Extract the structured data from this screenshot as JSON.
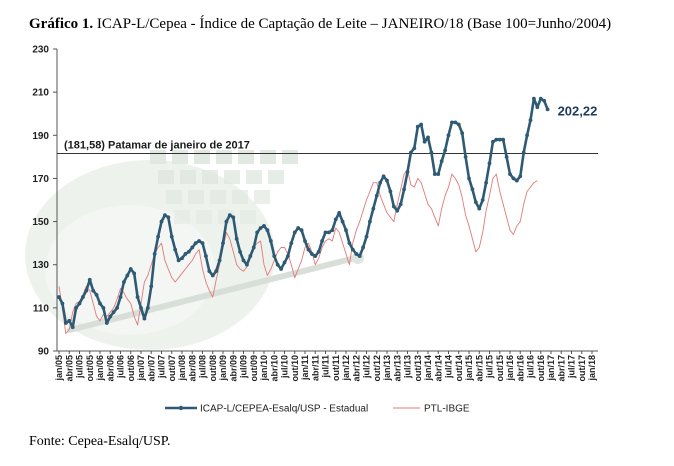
{
  "title_bold": "Gráfico 1.",
  "title_rest": " ICAP-L/Cepea - Índice de Captação de Leite – JANEIRO/18 (Base 100=Junho/2004)",
  "source": "Fonte: Cepea-Esalq/USP.",
  "chart_data": {
    "type": "line",
    "y_ticks": [
      90,
      110,
      130,
      150,
      170,
      190,
      210,
      230
    ],
    "ylim": [
      90,
      230
    ],
    "x_tick_labels": [
      "jan/05",
      "abr/05",
      "jul/05",
      "out/05",
      "jan/06",
      "abr/06",
      "jul/06",
      "out/06",
      "jan/07",
      "abr/07",
      "jul/07",
      "out/07",
      "jan/08",
      "abr/08",
      "jul/08",
      "out/08",
      "jan/09",
      "abr/09",
      "jul/09",
      "out/09",
      "jan/10",
      "abr/10",
      "jul/10",
      "out/10",
      "jan/11",
      "abr/11",
      "jul/11",
      "out/11",
      "jan/12",
      "abr/12",
      "jul/12",
      "out/12",
      "jan/13",
      "abr/13",
      "jul/13",
      "out/13",
      "jan/14",
      "abr/14",
      "jul/14",
      "out/14",
      "jan/15",
      "abr/15",
      "jul/15",
      "out/15",
      "jan/16",
      "abr/16",
      "jul/16",
      "out/16",
      "jan/17",
      "abr/17",
      "jul/17",
      "out/17",
      "jan/18"
    ],
    "reference_line": {
      "value": 181.58,
      "label": "(181,58) Patamar de janeiro de 2017"
    },
    "end_label": "202,22",
    "series": [
      {
        "name": "ICAP-L/CEPEA-Esalq/USP - Estadual",
        "color": "#2e5a74",
        "values": [
          115,
          112,
          103,
          104,
          101,
          110,
          112,
          115,
          118,
          123,
          118,
          116,
          112,
          110,
          103,
          106,
          108,
          110,
          115,
          122,
          125,
          128,
          126,
          115,
          110,
          105,
          110,
          120,
          135,
          143,
          150,
          153,
          152,
          143,
          137,
          132,
          133,
          135,
          136,
          138,
          140,
          141,
          140,
          134,
          127,
          125,
          127,
          132,
          140,
          150,
          153,
          152,
          142,
          136,
          132,
          130,
          134,
          138,
          145,
          147,
          148,
          146,
          141,
          134,
          130,
          128,
          131,
          134,
          140,
          145,
          147,
          146,
          141,
          137,
          135,
          134,
          136,
          141,
          145,
          145,
          146,
          151,
          154,
          150,
          146,
          140,
          137,
          135,
          134,
          138,
          143,
          150,
          156,
          162,
          168,
          171,
          169,
          164,
          157,
          155,
          158,
          165,
          173,
          182,
          184,
          194,
          195,
          187,
          189,
          182,
          172,
          172,
          178,
          183,
          190,
          196,
          196,
          195,
          191,
          180,
          170,
          165,
          159,
          156,
          160,
          168,
          177,
          187,
          188,
          188,
          188,
          180,
          172,
          170,
          169,
          171,
          182,
          190,
          197,
          207,
          203,
          207,
          206,
          202
        ]
      },
      {
        "name": "PTL-IBGE",
        "color": "#e07a7a",
        "values": [
          120,
          110,
          98,
          100,
          108,
          112,
          113,
          116,
          120,
          118,
          112,
          106,
          104,
          107,
          106,
          108,
          110,
          114,
          119,
          117,
          114,
          112,
          106,
          102,
          112,
          122,
          125,
          130,
          135,
          138,
          140,
          132,
          128,
          124,
          122,
          124,
          126,
          128,
          130,
          132,
          135,
          137,
          128,
          122,
          118,
          115,
          123,
          130,
          138,
          145,
          142,
          136,
          130,
          128,
          127,
          129,
          133,
          138,
          140,
          141,
          130,
          125,
          128,
          132,
          136,
          138,
          138,
          135,
          130,
          124,
          128,
          132,
          138,
          140,
          136,
          130,
          133,
          138,
          141,
          142,
          141,
          147,
          145,
          140,
          135,
          130,
          140,
          146,
          150,
          155,
          160,
          164,
          168,
          168,
          162,
          158,
          154,
          152,
          150,
          158,
          165,
          172,
          174,
          167,
          166,
          170,
          168,
          163,
          158,
          156,
          152,
          148,
          156,
          162,
          166,
          172,
          170,
          167,
          161,
          153,
          148,
          142,
          136,
          138,
          145,
          155,
          162,
          170,
          172,
          164,
          158,
          152,
          146,
          144,
          148,
          150,
          158,
          164,
          166,
          168,
          169
        ]
      }
    ]
  }
}
